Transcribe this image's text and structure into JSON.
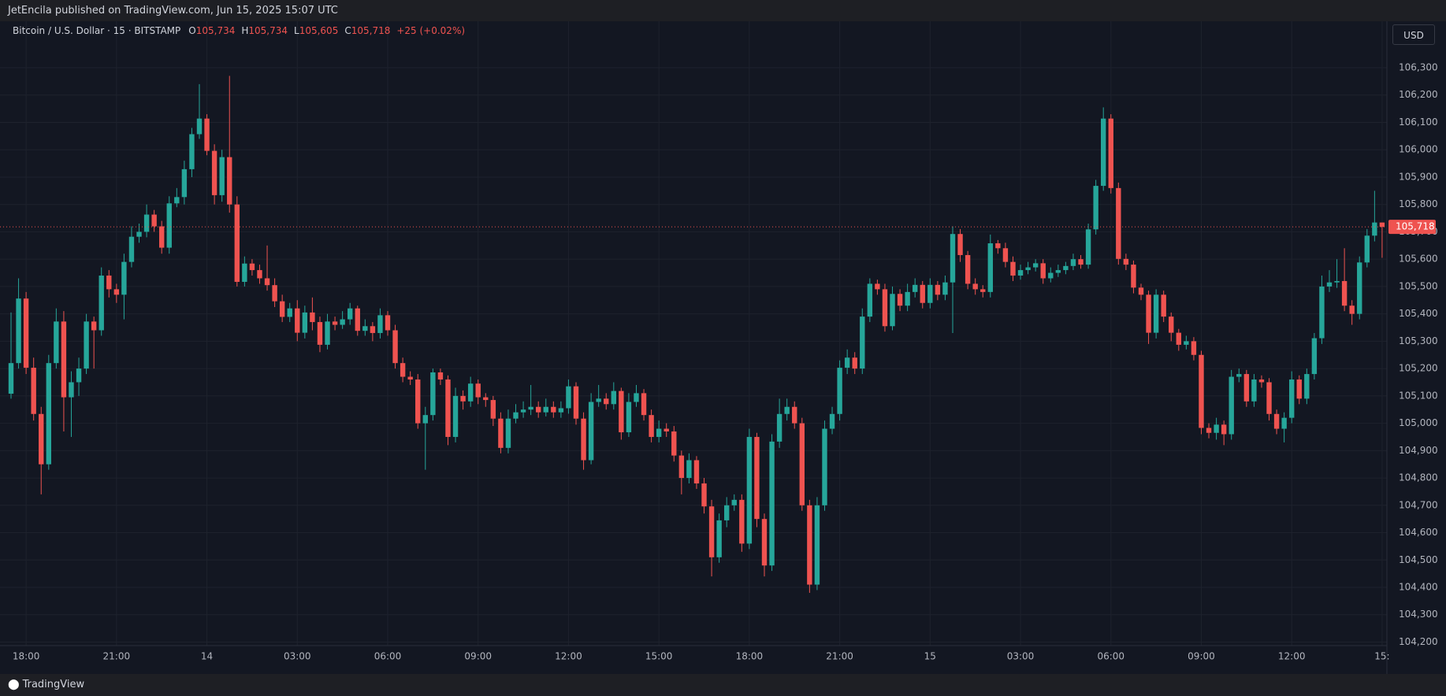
{
  "page": {
    "published": "JetEncila published on TradingView.com, Jun 15, 2025 15:07 UTC",
    "brand": "TradingView"
  },
  "chart_data": {
    "type": "candlestick",
    "symbol": "Bitcoin / U.S. Dollar · 15 · BITSTAMP",
    "legend": [
      {
        "key": "O",
        "text": "105,734"
      },
      {
        "key": "H",
        "text": "105,734"
      },
      {
        "key": "L",
        "text": "105,605"
      },
      {
        "key": "C",
        "text": "105,718"
      }
    ],
    "change": "+25 (+0.02%)",
    "currency": "USD",
    "last_price": {
      "value": 105718,
      "label": "105,718"
    },
    "up_color": "#26a69a",
    "down_color": "#ef5350",
    "grid": true,
    "categories": [
      null,
      null,
      "18:00",
      null,
      null,
      null,
      null,
      null,
      null,
      null,
      null,
      null,
      null,
      null,
      "21:00",
      null,
      null,
      null,
      null,
      null,
      null,
      null,
      null,
      null,
      null,
      null,
      "14",
      null,
      null,
      null,
      null,
      null,
      null,
      null,
      null,
      null,
      null,
      null,
      "03:00",
      null,
      null,
      null,
      null,
      null,
      null,
      null,
      null,
      null,
      null,
      null,
      "06:00",
      null,
      null,
      null,
      null,
      null,
      null,
      null,
      null,
      null,
      null,
      null,
      "09:00",
      null,
      null,
      null,
      null,
      null,
      null,
      null,
      null,
      null,
      null,
      null,
      "12:00",
      null,
      null,
      null,
      null,
      null,
      null,
      null,
      null,
      null,
      null,
      null,
      "15:00",
      null,
      null,
      null,
      null,
      null,
      null,
      null,
      null,
      null,
      null,
      null,
      "18:00",
      null,
      null,
      null,
      null,
      null,
      null,
      null,
      null,
      null,
      null,
      null,
      "21:00",
      null,
      null,
      null,
      null,
      null,
      null,
      null,
      null,
      null,
      null,
      null,
      "15",
      null,
      null,
      null,
      null,
      null,
      null,
      null,
      null,
      null,
      null,
      null,
      "03:00",
      null,
      null,
      null,
      null,
      null,
      null,
      null,
      null,
      null,
      null,
      null,
      "06:00",
      null,
      null,
      null,
      null,
      null,
      null,
      null,
      null,
      null,
      null,
      null,
      "09:00",
      null,
      null,
      null,
      null,
      null,
      null,
      null,
      null,
      null,
      null,
      null,
      "12:00",
      null,
      null,
      null,
      null,
      null,
      null,
      null,
      null,
      null,
      null,
      null,
      "15:"
    ],
    "open": [
      105108,
      105220,
      105456,
      105203,
      105034,
      104850,
      105220,
      105372,
      105095,
      105150,
      105200,
      105372,
      105340,
      105540,
      105490,
      105470,
      105590,
      105682,
      105700,
      105763,
      105720,
      105642,
      105804,
      105827,
      105929,
      106057,
      106114,
      105996,
      105834,
      105973,
      105800,
      105517,
      105584,
      105560,
      105530,
      105505,
      105446,
      105389,
      105420,
      105331,
      105405,
      105370,
      105287,
      105372,
      105360,
      105380,
      105420,
      105338,
      105355,
      105330,
      105395,
      105340,
      105220,
      105170,
      105160,
      105000,
      105030,
      105186,
      105160,
      104950,
      105100,
      105080,
      105145,
      105095,
      105085,
      105017,
      104910,
      105017,
      105040,
      105050,
      105060,
      105040,
      105060,
      105040,
      105055,
      105135,
      105017,
      104865,
      105078,
      105090,
      105070,
      105118,
      104967,
      105078,
      105110,
      105030,
      104950,
      104980,
      104970,
      104882,
      104800,
      104865,
      104780,
      104696,
      104510,
      104645,
      104700,
      104720,
      104560,
      104950,
      104650,
      104480,
      104933,
      105034,
      105060,
      105000,
      104700,
      104410,
      104700,
      104980,
      105034,
      105203,
      105240,
      105200,
      105390,
      105510,
      105490,
      105355,
      105473,
      105430,
      105480,
      105506,
      105440,
      105506,
      105470,
      105515,
      105692,
      105615,
      105510,
      105490,
      105480,
      105658,
      105640,
      105590,
      105540,
      105560,
      105570,
      105585,
      105530,
      105550,
      105560,
      105575,
      105600,
      105580,
      105709,
      105868,
      106114,
      105860,
      105601,
      105580,
      105496,
      105470,
      105331,
      105470,
      105390,
      105331,
      105287,
      105300,
      105250,
      104983,
      104965,
      104995,
      104960,
      105170,
      105180,
      105080,
      105160,
      105150,
      105034,
      104980,
      105020,
      105160,
      105090,
      105180,
      105311,
      105500,
      105515,
      105520,
      105430,
      105400,
      105588,
      105686,
      105734
    ],
    "high": [
      105405,
      105530,
      105480,
      105240,
      105060,
      105250,
      105420,
      105410,
      105190,
      105240,
      105400,
      105390,
      105570,
      105560,
      105510,
      105620,
      105720,
      105730,
      105800,
      105780,
      105740,
      105830,
      105860,
      105960,
      106080,
      106240,
      106130,
      106020,
      106000,
      106270,
      105830,
      105610,
      105600,
      105580,
      105650,
      105530,
      105470,
      105440,
      105450,
      105430,
      105460,
      105390,
      105400,
      105390,
      105410,
      105440,
      105430,
      105380,
      105370,
      105420,
      105410,
      105360,
      105240,
      105190,
      105180,
      105060,
      105200,
      105200,
      105175,
      105130,
      105120,
      105170,
      105160,
      105110,
      105100,
      105040,
      105050,
      105070,
      105080,
      105140,
      105080,
      105090,
      105080,
      105080,
      105160,
      105150,
      105040,
      105110,
      105140,
      105110,
      105150,
      105130,
      105110,
      105140,
      105125,
      105050,
      105010,
      105000,
      104990,
      104900,
      104890,
      104880,
      104800,
      104720,
      104670,
      104730,
      104740,
      104740,
      104980,
      104965,
      104670,
      104960,
      105090,
      105090,
      105080,
      105020,
      104720,
      104730,
      105010,
      105060,
      105230,
      105270,
      105260,
      105420,
      105530,
      105525,
      105510,
      105500,
      105490,
      105510,
      105530,
      105520,
      105530,
      105520,
      105540,
      105720,
      105710,
      105630,
      105530,
      105505,
      105690,
      105670,
      105660,
      105610,
      105580,
      105590,
      105600,
      105600,
      105570,
      105580,
      105590,
      105620,
      105615,
      105730,
      105890,
      106155,
      106130,
      105880,
      105620,
      105595,
      105510,
      105485,
      105490,
      105485,
      105405,
      105345,
      105320,
      105315,
      105265,
      105000,
      105020,
      105010,
      105195,
      105200,
      105195,
      105180,
      105175,
      105165,
      105050,
      105040,
      105190,
      105175,
      105200,
      105330,
      105540,
      105560,
      105600,
      105640,
      105450,
      105610,
      105710,
      105850,
      105734
    ],
    "low": [
      105090,
      105200,
      105180,
      105010,
      104740,
      104830,
      105200,
      104970,
      104950,
      105100,
      105180,
      105200,
      105320,
      105460,
      105440,
      105380,
      105570,
      105660,
      105680,
      105700,
      105620,
      105620,
      105790,
      105800,
      105900,
      106040,
      105980,
      105800,
      105810,
      105770,
      105500,
      105500,
      105540,
      105510,
      105485,
      105425,
      105370,
      105370,
      105300,
      105310,
      105340,
      105260,
      105270,
      105340,
      105345,
      105360,
      105320,
      105320,
      105300,
      105310,
      105320,
      105200,
      105150,
      105140,
      104980,
      104830,
      105010,
      105140,
      104920,
      104930,
      105050,
      105060,
      105070,
      105060,
      104990,
      104890,
      104890,
      105000,
      105020,
      105030,
      105020,
      105025,
      105020,
      105020,
      105035,
      104995,
      104830,
      104850,
      105060,
      105050,
      105050,
      104940,
      104950,
      105060,
      105010,
      104930,
      104930,
      104950,
      104860,
      104740,
      104780,
      104760,
      104670,
      104440,
      104490,
      104620,
      104680,
      104530,
      104540,
      104620,
      104440,
      104460,
      104910,
      105010,
      104980,
      104680,
      104380,
      104390,
      104680,
      104960,
      105010,
      105180,
      105180,
      105180,
      105370,
      105470,
      105335,
      105340,
      105410,
      105410,
      105460,
      105420,
      105420,
      105450,
      105450,
      105330,
      105590,
      105490,
      105470,
      105460,
      105460,
      105620,
      105570,
      105520,
      105525,
      105545,
      105555,
      105510,
      105515,
      105535,
      105545,
      105560,
      105565,
      105565,
      105690,
      105850,
      105840,
      105580,
      105560,
      105475,
      105450,
      105290,
      105310,
      105370,
      105300,
      105265,
      105270,
      105230,
      104960,
      104945,
      104940,
      104920,
      104940,
      105150,
      105060,
      105060,
      105130,
      105010,
      104960,
      104930,
      105000,
      105070,
      105070,
      105160,
      105290,
      105480,
      105495,
      105410,
      105360,
      105380,
      105570,
      105665,
      105605
    ],
    "close": [
      105220,
      105456,
      105203,
      105034,
      104850,
      105220,
      105372,
      105095,
      105150,
      105200,
      105372,
      105340,
      105540,
      105490,
      105470,
      105590,
      105682,
      105700,
      105763,
      105720,
      105642,
      105804,
      105827,
      105929,
      106057,
      106114,
      105996,
      105834,
      105973,
      105800,
      105517,
      105584,
      105560,
      105530,
      105505,
      105446,
      105389,
      105420,
      105331,
      105405,
      105370,
      105287,
      105372,
      105360,
      105380,
      105420,
      105338,
      105355,
      105330,
      105395,
      105340,
      105220,
      105170,
      105160,
      105000,
      105030,
      105186,
      105160,
      104950,
      105100,
      105080,
      105145,
      105095,
      105085,
      105017,
      104910,
      105017,
      105040,
      105050,
      105060,
      105040,
      105060,
      105040,
      105055,
      105135,
      105017,
      104865,
      105078,
      105090,
      105070,
      105118,
      104967,
      105078,
      105110,
      105030,
      104950,
      104980,
      104970,
      104882,
      104800,
      104865,
      104780,
      104696,
      104510,
      104645,
      104700,
      104720,
      104560,
      104950,
      104650,
      104480,
      104933,
      105034,
      105060,
      105000,
      104700,
      104410,
      104700,
      104980,
      105034,
      105203,
      105240,
      105200,
      105390,
      105510,
      105490,
      105355,
      105473,
      105430,
      105480,
      105506,
      105440,
      105506,
      105470,
      105515,
      105692,
      105615,
      105510,
      105490,
      105480,
      105658,
      105640,
      105590,
      105540,
      105560,
      105570,
      105585,
      105530,
      105550,
      105560,
      105575,
      105600,
      105580,
      105709,
      105868,
      106114,
      105860,
      105601,
      105580,
      105496,
      105470,
      105331,
      105470,
      105390,
      105331,
      105287,
      105300,
      105250,
      104983,
      104965,
      104995,
      104960,
      105170,
      105180,
      105080,
      105160,
      105150,
      105034,
      104980,
      105020,
      105160,
      105090,
      105180,
      105311,
      105500,
      105515,
      105520,
      105430,
      105400,
      105588,
      105686,
      105734,
      105718
    ],
    "ylim": [
      104187,
      106467
    ],
    "yticks": [
      {
        "value": 104200,
        "label": "104,200"
      },
      {
        "value": 104300,
        "label": "104,300"
      },
      {
        "value": 104400,
        "label": "104,400"
      },
      {
        "value": 104500,
        "label": "104,500"
      },
      {
        "value": 104600,
        "label": "104,600"
      },
      {
        "value": 104700,
        "label": "104,700"
      },
      {
        "value": 104800,
        "label": "104,800"
      },
      {
        "value": 104900,
        "label": "104,900"
      },
      {
        "value": 105000,
        "label": "105,000"
      },
      {
        "value": 105100,
        "label": "105,100"
      },
      {
        "value": 105200,
        "label": "105,200"
      },
      {
        "value": 105300,
        "label": "105,300"
      },
      {
        "value": 105400,
        "label": "105,400"
      },
      {
        "value": 105500,
        "label": "105,500"
      },
      {
        "value": 105600,
        "label": "105,600"
      },
      {
        "value": 105700,
        "label": "105,700"
      },
      {
        "value": 105800,
        "label": "105,800"
      },
      {
        "value": 105900,
        "label": "105,900"
      },
      {
        "value": 106000,
        "label": "106,000"
      },
      {
        "value": 106100,
        "label": "106,100"
      },
      {
        "value": 106200,
        "label": "106,200"
      },
      {
        "value": 106300,
        "label": "106,300"
      }
    ]
  }
}
